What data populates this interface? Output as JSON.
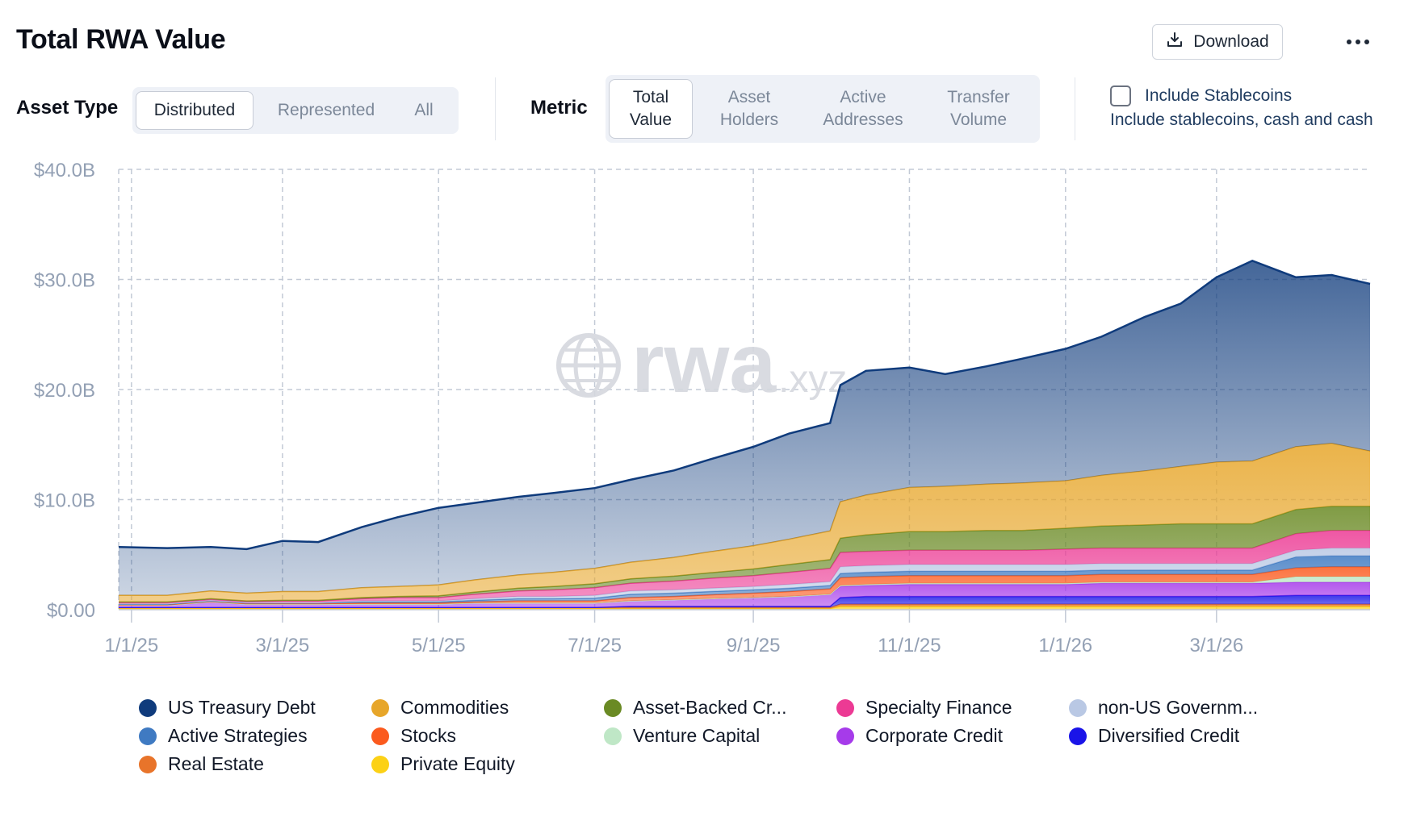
{
  "header": {
    "title": "Total RWA Value",
    "download_label": "Download"
  },
  "asset_type": {
    "label": "Asset Type",
    "options": [
      "Distributed",
      "Represented",
      "All"
    ],
    "selected": "Distributed"
  },
  "metric": {
    "label": "Metric",
    "options": [
      {
        "line1": "Total",
        "line2": "Value"
      },
      {
        "line1": "Asset",
        "line2": "Holders"
      },
      {
        "line1": "Active",
        "line2": "Addresses"
      },
      {
        "line1": "Transfer",
        "line2": "Volume"
      }
    ],
    "selected": "Total Value"
  },
  "stablecoins": {
    "checked": false,
    "label": "Include Stablecoins",
    "description": "Include stablecoins, cash and cash"
  },
  "watermark": {
    "main": "rwa",
    "suffix": ".xyz"
  },
  "chart_data": {
    "type": "area",
    "stacked": true,
    "title": "",
    "xlabel": "",
    "ylabel": "",
    "y_unit": "$B",
    "ylim": [
      0,
      40
    ],
    "y_ticks": [
      "$0.00",
      "$10.0B",
      "$20.0B",
      "$30.0B",
      "$40.0B"
    ],
    "x_ticks": [
      "1/1/25",
      "3/1/25",
      "5/1/25",
      "7/1/25",
      "9/1/25",
      "11/1/25",
      "1/1/26",
      "3/1/26"
    ],
    "grid": true,
    "legend_position": "bottom",
    "x": [
      "2024-12-27",
      "2025-01-15",
      "2025-02-01",
      "2025-02-15",
      "2025-03-01",
      "2025-03-15",
      "2025-04-01",
      "2025-04-15",
      "2025-05-01",
      "2025-05-15",
      "2025-06-01",
      "2025-06-15",
      "2025-07-01",
      "2025-07-15",
      "2025-08-01",
      "2025-08-15",
      "2025-09-01",
      "2025-09-15",
      "2025-10-01",
      "2025-10-05",
      "2025-10-15",
      "2025-11-01",
      "2025-11-15",
      "2025-12-01",
      "2025-12-15",
      "2026-01-01",
      "2026-01-15",
      "2026-02-01",
      "2026-02-15",
      "2026-03-01",
      "2026-03-15",
      "2026-04-01",
      "2026-04-15",
      "2026-04-30"
    ],
    "series": [
      {
        "name": "Private Equity",
        "color": "#fcd116",
        "values": [
          0.1,
          0.1,
          0.1,
          0.1,
          0.1,
          0.1,
          0.1,
          0.1,
          0.1,
          0.1,
          0.1,
          0.1,
          0.1,
          0.1,
          0.1,
          0.1,
          0.1,
          0.1,
          0.1,
          0.3,
          0.3,
          0.3,
          0.3,
          0.3,
          0.3,
          0.3,
          0.3,
          0.3,
          0.3,
          0.3,
          0.3,
          0.3,
          0.3,
          0.3
        ]
      },
      {
        "name": "Real Estate",
        "color": "#e8742a",
        "values": [
          0.1,
          0.1,
          0.1,
          0.1,
          0.1,
          0.1,
          0.1,
          0.1,
          0.1,
          0.1,
          0.1,
          0.1,
          0.1,
          0.1,
          0.1,
          0.1,
          0.1,
          0.1,
          0.1,
          0.2,
          0.2,
          0.2,
          0.2,
          0.2,
          0.2,
          0.2,
          0.2,
          0.2,
          0.2,
          0.2,
          0.2,
          0.2,
          0.2,
          0.2
        ]
      },
      {
        "name": "Diversified Credit",
        "color": "#1a14e8",
        "values": [
          0,
          0,
          0,
          0,
          0,
          0,
          0,
          0,
          0,
          0,
          0,
          0,
          0,
          0.1,
          0.1,
          0.1,
          0.1,
          0.1,
          0.1,
          0.6,
          0.7,
          0.7,
          0.7,
          0.7,
          0.7,
          0.7,
          0.7,
          0.7,
          0.7,
          0.7,
          0.7,
          0.8,
          0.8,
          0.8
        ]
      },
      {
        "name": "Corporate Credit",
        "color": "#a63bea",
        "values": [
          0.2,
          0.2,
          0.5,
          0.3,
          0.3,
          0.3,
          0.3,
          0.3,
          0.3,
          0.4,
          0.4,
          0.4,
          0.4,
          0.5,
          0.6,
          0.7,
          0.8,
          0.9,
          1.1,
          1.0,
          1.0,
          1.1,
          1.1,
          1.1,
          1.1,
          1.1,
          1.2,
          1.2,
          1.2,
          1.2,
          1.2,
          1.2,
          1.2,
          1.2
        ]
      },
      {
        "name": "Venture Capital",
        "color": "#bfe7c6",
        "values": [
          0,
          0,
          0,
          0,
          0,
          0,
          0,
          0,
          0,
          0,
          0,
          0,
          0,
          0,
          0,
          0,
          0,
          0,
          0,
          0.1,
          0.1,
          0.1,
          0.1,
          0.1,
          0.1,
          0.1,
          0.1,
          0.1,
          0.1,
          0.1,
          0.1,
          0.5,
          0.5,
          0.5
        ]
      },
      {
        "name": "Stocks",
        "color": "#fb5a1e",
        "values": [
          0.05,
          0.05,
          0.05,
          0.05,
          0.05,
          0.05,
          0.1,
          0.1,
          0.1,
          0.1,
          0.2,
          0.2,
          0.2,
          0.3,
          0.3,
          0.35,
          0.4,
          0.45,
          0.5,
          0.7,
          0.7,
          0.7,
          0.7,
          0.7,
          0.7,
          0.7,
          0.7,
          0.7,
          0.7,
          0.7,
          0.7,
          0.8,
          0.9,
          0.9
        ]
      },
      {
        "name": "Active Strategies",
        "color": "#3f7ac2",
        "values": [
          0.05,
          0.05,
          0.05,
          0.05,
          0.05,
          0.05,
          0.1,
          0.1,
          0.1,
          0.15,
          0.2,
          0.2,
          0.25,
          0.3,
          0.3,
          0.3,
          0.3,
          0.3,
          0.3,
          0.4,
          0.4,
          0.4,
          0.4,
          0.4,
          0.4,
          0.4,
          0.4,
          0.4,
          0.4,
          0.4,
          0.4,
          1.0,
          1.0,
          1.0
        ]
      },
      {
        "name": "non-US Government Debt",
        "color": "#b9c8e4",
        "values": [
          0.05,
          0.05,
          0.05,
          0.05,
          0.05,
          0.05,
          0.1,
          0.1,
          0.1,
          0.15,
          0.2,
          0.2,
          0.25,
          0.3,
          0.3,
          0.3,
          0.3,
          0.35,
          0.35,
          0.6,
          0.6,
          0.6,
          0.6,
          0.6,
          0.6,
          0.6,
          0.6,
          0.6,
          0.6,
          0.6,
          0.6,
          0.6,
          0.7,
          0.7
        ]
      },
      {
        "name": "Specialty Finance",
        "color": "#ec3a94",
        "values": [
          0.1,
          0.1,
          0.1,
          0.1,
          0.15,
          0.15,
          0.2,
          0.3,
          0.3,
          0.4,
          0.5,
          0.6,
          0.7,
          0.7,
          0.8,
          0.9,
          1.0,
          1.1,
          1.2,
          1.3,
          1.3,
          1.3,
          1.3,
          1.3,
          1.3,
          1.4,
          1.4,
          1.4,
          1.4,
          1.4,
          1.4,
          1.5,
          1.6,
          1.6
        ]
      },
      {
        "name": "Asset-Backed Credit",
        "color": "#6a8a24",
        "values": [
          0.05,
          0.05,
          0.05,
          0.05,
          0.05,
          0.05,
          0.1,
          0.1,
          0.15,
          0.2,
          0.25,
          0.3,
          0.35,
          0.4,
          0.45,
          0.5,
          0.6,
          0.7,
          0.8,
          1.3,
          1.5,
          1.7,
          1.7,
          1.8,
          1.8,
          1.9,
          2.0,
          2.1,
          2.2,
          2.2,
          2.2,
          2.2,
          2.2,
          2.2
        ]
      },
      {
        "name": "Commodities",
        "color": "#e7a62a",
        "values": [
          0.6,
          0.6,
          0.7,
          0.7,
          0.8,
          0.8,
          0.9,
          0.9,
          1.0,
          1.1,
          1.2,
          1.3,
          1.4,
          1.5,
          1.7,
          1.9,
          2.1,
          2.3,
          2.6,
          3.3,
          3.6,
          4.0,
          4.1,
          4.2,
          4.3,
          4.3,
          4.6,
          4.9,
          5.2,
          5.6,
          5.7,
          5.7,
          5.7,
          5.0
        ]
      },
      {
        "name": "US Treasury Debt",
        "color": "#0f3b7c",
        "values": [
          4.4,
          4.3,
          4.0,
          4.0,
          4.6,
          4.5,
          5.5,
          6.3,
          7.0,
          7.0,
          7.1,
          7.2,
          7.3,
          7.5,
          7.9,
          8.4,
          9.0,
          9.6,
          9.8,
          10.6,
          11.3,
          10.9,
          10.2,
          10.7,
          11.3,
          12.0,
          12.6,
          14.0,
          14.8,
          16.8,
          18.2,
          15.4,
          15.3,
          15.2
        ]
      }
    ]
  },
  "legend": [
    {
      "label": "US Treasury Debt",
      "color": "#0f3b7c"
    },
    {
      "label": "Commodities",
      "color": "#e7a62a"
    },
    {
      "label": "Asset-Backed Cr...",
      "color": "#6a8a24"
    },
    {
      "label": "Specialty Finance",
      "color": "#ec3a94"
    },
    {
      "label": "non-US Governm...",
      "color": "#b9c8e4"
    },
    {
      "label": "Active Strategies",
      "color": "#3f7ac2"
    },
    {
      "label": "Stocks",
      "color": "#fb5a1e"
    },
    {
      "label": "Venture Capital",
      "color": "#bfe7c6"
    },
    {
      "label": "Corporate Credit",
      "color": "#a63bea"
    },
    {
      "label": "Diversified Credit",
      "color": "#1a14e8"
    },
    {
      "label": "Real Estate",
      "color": "#e8742a"
    },
    {
      "label": "Private Equity",
      "color": "#fcd116"
    }
  ]
}
